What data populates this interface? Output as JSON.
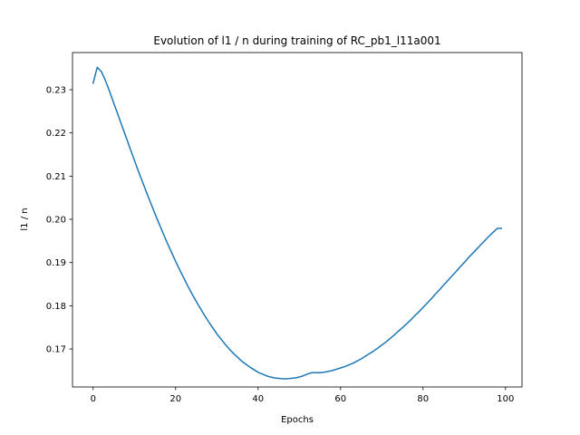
{
  "chart_data": {
    "type": "line",
    "title": "Evolution of l1 / n during training of RC_pb1_l11a001",
    "xlabel": "Epochs",
    "ylabel": "l1 / n",
    "xlim": [
      -5,
      104
    ],
    "ylim": [
      0.1612,
      0.2386
    ],
    "xticks": [
      0,
      20,
      40,
      60,
      80,
      100
    ],
    "yticks": [
      0.17,
      0.18,
      0.19,
      0.2,
      0.21,
      0.22,
      0.23
    ],
    "xtick_labels": [
      "0",
      "20",
      "40",
      "60",
      "80",
      "100"
    ],
    "ytick_labels": [
      "0.17",
      "0.18",
      "0.19",
      "0.20",
      "0.21",
      "0.22",
      "0.23"
    ],
    "grid": false,
    "series": [
      {
        "name": "l1 / n",
        "color": "#1f77b4",
        "x": [
          0,
          1,
          2,
          3,
          4,
          5,
          6,
          7,
          8,
          9,
          10,
          11,
          12,
          13,
          14,
          15,
          16,
          17,
          18,
          19,
          20,
          21,
          22,
          23,
          24,
          25,
          26,
          27,
          28,
          29,
          30,
          31,
          32,
          33,
          34,
          35,
          36,
          37,
          38,
          39,
          40,
          41,
          42,
          43,
          44,
          45,
          46,
          47,
          48,
          49,
          50,
          51,
          52,
          53,
          54,
          55,
          56,
          57,
          58,
          59,
          60,
          61,
          62,
          63,
          64,
          65,
          66,
          67,
          68,
          69,
          70,
          71,
          72,
          73,
          74,
          75,
          76,
          77,
          78,
          79,
          80,
          81,
          82,
          83,
          84,
          85,
          86,
          87,
          88,
          89,
          90,
          91,
          92,
          93,
          94,
          95,
          96,
          97,
          98,
          99
        ],
        "y": [
          0.2315,
          0.2352,
          0.2342,
          0.2321,
          0.2296,
          0.2269,
          0.2243,
          0.2216,
          0.219,
          0.2163,
          0.2137,
          0.2111,
          0.2086,
          0.2061,
          0.2037,
          0.2013,
          0.199,
          0.1967,
          0.1945,
          0.1924,
          0.1903,
          0.1883,
          0.1864,
          0.1845,
          0.1827,
          0.181,
          0.1794,
          0.1778,
          0.1763,
          0.1749,
          0.1735,
          0.1723,
          0.1711,
          0.17,
          0.169,
          0.1681,
          0.1672,
          0.1665,
          0.1658,
          0.1652,
          0.1646,
          0.1642,
          0.1638,
          0.1635,
          0.1633,
          0.1632,
          0.1631,
          0.1631,
          0.1632,
          0.1633,
          0.1635,
          0.1638,
          0.1642,
          0.1645,
          0.1645,
          0.1645,
          0.1646,
          0.1648,
          0.165,
          0.1653,
          0.1656,
          0.1659,
          0.1663,
          0.1667,
          0.1672,
          0.1677,
          0.1683,
          0.1689,
          0.1695,
          0.1702,
          0.1709,
          0.1716,
          0.1724,
          0.1732,
          0.1741,
          0.1749,
          0.1758,
          0.1767,
          0.1777,
          0.1786,
          0.1796,
          0.1806,
          0.1816,
          0.1827,
          0.1837,
          0.1848,
          0.1858,
          0.1869,
          0.1879,
          0.189,
          0.19,
          0.1911,
          0.1921,
          0.1931,
          0.1941,
          0.1951,
          0.1961,
          0.197,
          0.1979,
          0.1979
        ]
      }
    ]
  }
}
